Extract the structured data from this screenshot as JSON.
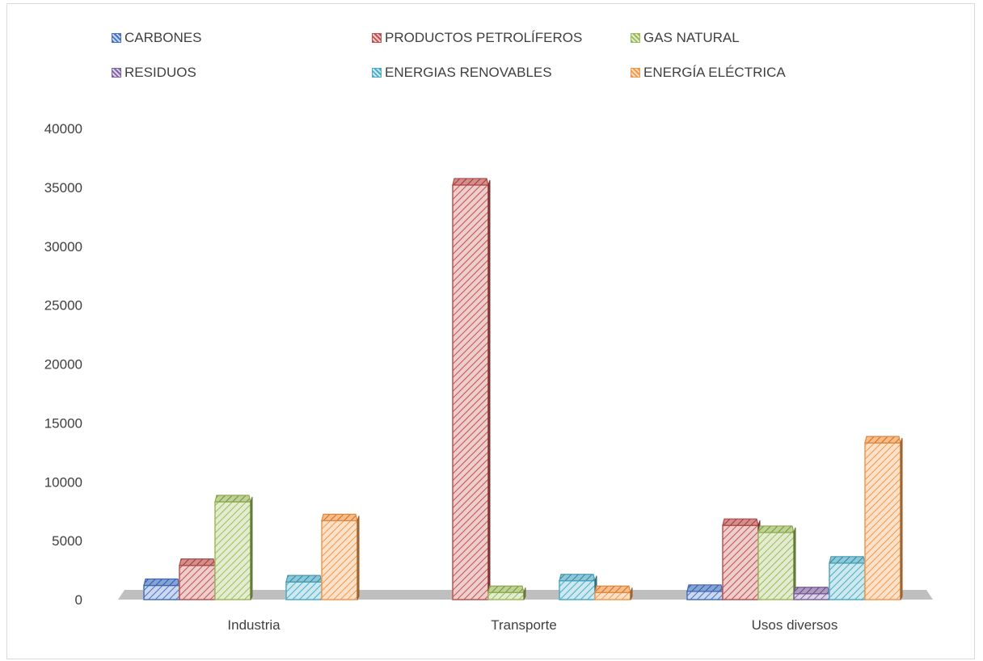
{
  "chart_data": {
    "type": "bar",
    "categories": [
      "Industria",
      "Transporte",
      "Usos diversos"
    ],
    "series": [
      {
        "name": "CARBONES",
        "color": "#4472c4",
        "values": [
          1200,
          0,
          700
        ]
      },
      {
        "name": "PRODUCTOS PETROLÍFEROS",
        "color": "#c0504d",
        "values": [
          2900,
          35200,
          6300
        ]
      },
      {
        "name": "GAS NATURAL",
        "color": "#9bbb59",
        "values": [
          8300,
          600,
          5700
        ]
      },
      {
        "name": "RESIDUOS",
        "color": "#8064a2",
        "values": [
          0,
          0,
          500
        ]
      },
      {
        "name": "ENERGIAS RENOVABLES",
        "color": "#4bacc6",
        "values": [
          1500,
          1600,
          3100
        ]
      },
      {
        "name": "ENERGÍA ELÉCTRICA",
        "color": "#f79646",
        "values": [
          6700,
          600,
          13300
        ]
      }
    ],
    "y_ticks": [
      "0",
      "5000",
      "10000",
      "15000",
      "20000",
      "25000",
      "30000",
      "35000",
      "40000"
    ],
    "ylim": [
      0,
      40000
    ],
    "legend_position": "top",
    "grid": false,
    "style": "3d-hatched"
  }
}
